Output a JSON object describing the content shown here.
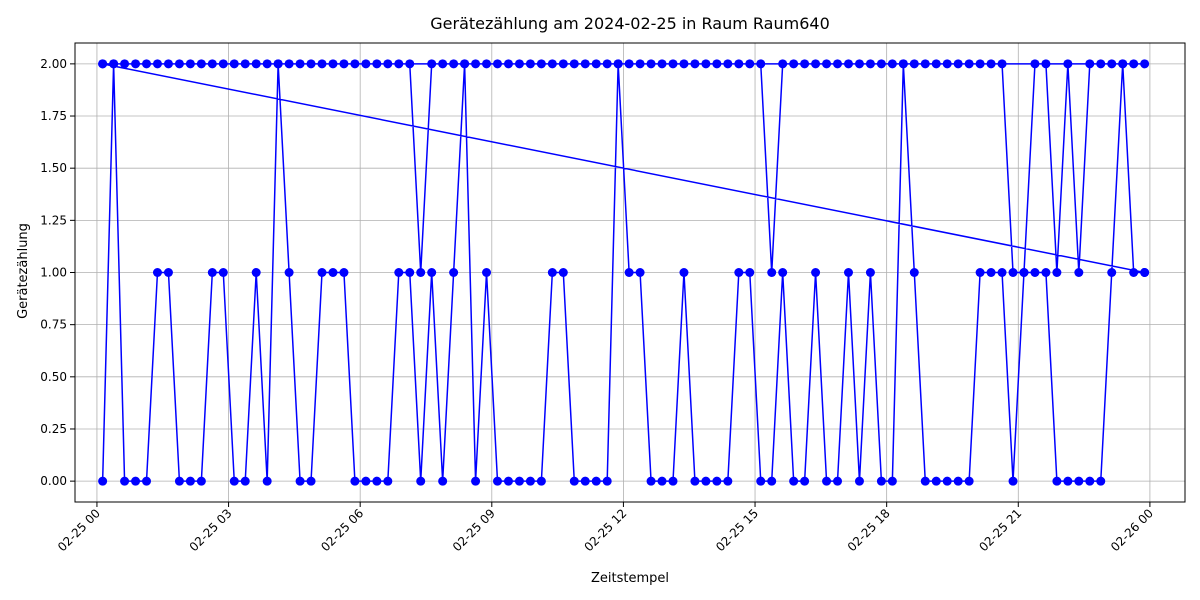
{
  "chart_data": {
    "type": "line",
    "title": "Gerätezählung am 2024-02-25 in Raum Raum640",
    "xlabel": "Zeitstempel",
    "ylabel": "Gerätezählung",
    "x_unit": "hours",
    "xlim": [
      -0.5,
      24.8
    ],
    "ylim": [
      -0.1,
      2.1
    ],
    "x_ticks": [
      0,
      3,
      6,
      9,
      12,
      15,
      18,
      21,
      24
    ],
    "x_tick_labels": [
      "02-25 00",
      "02-25 03",
      "02-25 06",
      "02-25 09",
      "02-25 12",
      "02-25 15",
      "02-25 18",
      "02-25 21",
      "02-26 00"
    ],
    "y_ticks": [
      0.0,
      0.25,
      0.5,
      0.75,
      1.0,
      1.25,
      1.5,
      1.75,
      2.0
    ],
    "y_tick_labels": [
      "0.00",
      "0.25",
      "0.50",
      "0.75",
      "1.00",
      "1.25",
      "1.50",
      "1.75",
      "2.00"
    ],
    "grid": true,
    "legend": "none",
    "series": [
      {
        "color": "#0000ff",
        "marker": "circle",
        "points": [
          [
            0.13,
            0
          ],
          [
            0.38,
            2
          ],
          [
            0.63,
            0
          ],
          [
            0.88,
            0
          ],
          [
            1.13,
            0
          ],
          [
            1.38,
            1
          ],
          [
            1.63,
            1
          ],
          [
            1.88,
            0
          ],
          [
            2.13,
            0
          ],
          [
            2.38,
            0
          ],
          [
            2.63,
            1
          ],
          [
            2.88,
            1
          ],
          [
            3.13,
            0
          ],
          [
            3.38,
            0
          ],
          [
            3.63,
            1
          ],
          [
            3.88,
            0
          ],
          [
            4.13,
            2
          ],
          [
            4.38,
            1
          ],
          [
            4.63,
            0
          ],
          [
            4.88,
            0
          ],
          [
            5.13,
            1
          ],
          [
            5.38,
            1
          ],
          [
            5.63,
            1
          ],
          [
            5.88,
            0
          ],
          [
            6.13,
            0
          ],
          [
            6.38,
            0
          ],
          [
            6.63,
            0
          ],
          [
            6.88,
            1
          ],
          [
            7.13,
            1
          ],
          [
            7.38,
            0
          ],
          [
            7.63,
            1
          ],
          [
            7.88,
            0
          ],
          [
            8.13,
            1
          ],
          [
            8.38,
            2
          ],
          [
            8.63,
            0
          ],
          [
            8.88,
            1
          ],
          [
            9.13,
            0
          ],
          [
            9.38,
            0
          ],
          [
            9.63,
            0
          ],
          [
            9.88,
            0
          ],
          [
            10.13,
            0
          ],
          [
            10.38,
            1
          ],
          [
            10.63,
            1
          ],
          [
            10.88,
            0
          ],
          [
            11.13,
            0
          ],
          [
            11.38,
            0
          ],
          [
            11.63,
            0
          ],
          [
            11.88,
            2
          ],
          [
            12.13,
            1
          ],
          [
            12.38,
            1
          ],
          [
            12.63,
            0
          ],
          [
            12.88,
            0
          ],
          [
            13.13,
            0
          ],
          [
            13.38,
            1
          ],
          [
            13.63,
            0
          ],
          [
            13.88,
            0
          ],
          [
            14.13,
            0
          ],
          [
            14.38,
            0
          ],
          [
            14.63,
            1
          ],
          [
            14.88,
            1
          ],
          [
            15.13,
            0
          ],
          [
            15.38,
            0
          ],
          [
            15.63,
            1
          ],
          [
            15.88,
            0
          ],
          [
            16.13,
            0
          ],
          [
            16.38,
            1
          ],
          [
            16.63,
            0
          ],
          [
            16.88,
            0
          ],
          [
            17.13,
            1
          ],
          [
            17.38,
            0
          ],
          [
            17.63,
            1
          ],
          [
            17.88,
            0
          ],
          [
            18.13,
            0
          ],
          [
            18.38,
            2
          ],
          [
            18.63,
            1
          ],
          [
            18.88,
            0
          ],
          [
            19.13,
            0
          ],
          [
            19.38,
            0
          ],
          [
            19.63,
            0
          ],
          [
            19.88,
            0
          ],
          [
            20.13,
            1
          ],
          [
            20.38,
            1
          ],
          [
            20.63,
            1
          ],
          [
            20.88,
            0
          ],
          [
            21.13,
            1
          ],
          [
            21.38,
            1
          ],
          [
            21.63,
            1
          ],
          [
            21.88,
            0
          ],
          [
            22.13,
            0
          ],
          [
            22.38,
            0
          ],
          [
            22.63,
            0
          ],
          [
            22.88,
            0
          ],
          [
            23.13,
            1
          ],
          [
            23.38,
            2
          ],
          [
            23.63,
            1
          ],
          [
            23.88,
            1
          ],
          [
            0.13,
            2
          ],
          [
            0.38,
            2
          ],
          [
            0.63,
            2
          ],
          [
            0.88,
            2
          ],
          [
            1.13,
            2
          ],
          [
            1.38,
            2
          ],
          [
            1.63,
            2
          ],
          [
            1.88,
            2
          ],
          [
            2.13,
            2
          ],
          [
            2.38,
            2
          ],
          [
            2.63,
            2
          ],
          [
            2.88,
            2
          ],
          [
            3.13,
            2
          ],
          [
            3.38,
            2
          ],
          [
            3.63,
            2
          ],
          [
            3.88,
            2
          ],
          [
            4.13,
            2
          ],
          [
            4.38,
            2
          ],
          [
            4.63,
            2
          ],
          [
            4.88,
            2
          ],
          [
            5.13,
            2
          ],
          [
            5.38,
            2
          ],
          [
            5.63,
            2
          ],
          [
            5.88,
            2
          ],
          [
            6.13,
            2
          ],
          [
            6.38,
            2
          ],
          [
            6.63,
            2
          ],
          [
            6.88,
            2
          ],
          [
            7.13,
            2
          ],
          [
            7.38,
            1
          ],
          [
            7.63,
            2
          ],
          [
            7.88,
            2
          ],
          [
            8.13,
            2
          ],
          [
            8.38,
            2
          ],
          [
            8.63,
            2
          ],
          [
            8.88,
            2
          ],
          [
            9.13,
            2
          ],
          [
            9.38,
            2
          ],
          [
            9.63,
            2
          ],
          [
            9.88,
            2
          ],
          [
            10.13,
            2
          ],
          [
            10.38,
            2
          ],
          [
            10.63,
            2
          ],
          [
            10.88,
            2
          ],
          [
            11.13,
            2
          ],
          [
            11.38,
            2
          ],
          [
            11.63,
            2
          ],
          [
            11.88,
            2
          ],
          [
            12.13,
            2
          ],
          [
            12.38,
            2
          ],
          [
            12.63,
            2
          ],
          [
            12.88,
            2
          ],
          [
            13.13,
            2
          ],
          [
            13.38,
            2
          ],
          [
            13.63,
            2
          ],
          [
            13.88,
            2
          ],
          [
            14.13,
            2
          ],
          [
            14.38,
            2
          ],
          [
            14.63,
            2
          ],
          [
            14.88,
            2
          ],
          [
            15.13,
            2
          ],
          [
            15.38,
            1
          ],
          [
            15.63,
            2
          ],
          [
            15.88,
            2
          ],
          [
            16.13,
            2
          ],
          [
            16.38,
            2
          ],
          [
            16.63,
            2
          ],
          [
            16.88,
            2
          ],
          [
            17.13,
            2
          ],
          [
            17.38,
            2
          ],
          [
            17.63,
            2
          ],
          [
            17.88,
            2
          ],
          [
            18.13,
            2
          ],
          [
            18.38,
            2
          ],
          [
            18.63,
            2
          ],
          [
            18.88,
            2
          ],
          [
            19.13,
            2
          ],
          [
            19.38,
            2
          ],
          [
            19.63,
            2
          ],
          [
            19.88,
            2
          ],
          [
            20.13,
            2
          ],
          [
            20.38,
            2
          ],
          [
            20.63,
            2
          ],
          [
            20.88,
            1
          ],
          [
            21.13,
            1
          ],
          [
            21.38,
            2
          ],
          [
            21.63,
            2
          ],
          [
            21.88,
            1
          ],
          [
            22.13,
            2
          ],
          [
            22.38,
            1
          ],
          [
            22.63,
            2
          ],
          [
            22.88,
            2
          ],
          [
            23.13,
            2
          ],
          [
            23.38,
            2
          ],
          [
            23.63,
            2
          ],
          [
            23.88,
            2
          ],
          [
            0.13,
            2
          ],
          [
            23.88,
            1
          ]
        ]
      }
    ]
  }
}
